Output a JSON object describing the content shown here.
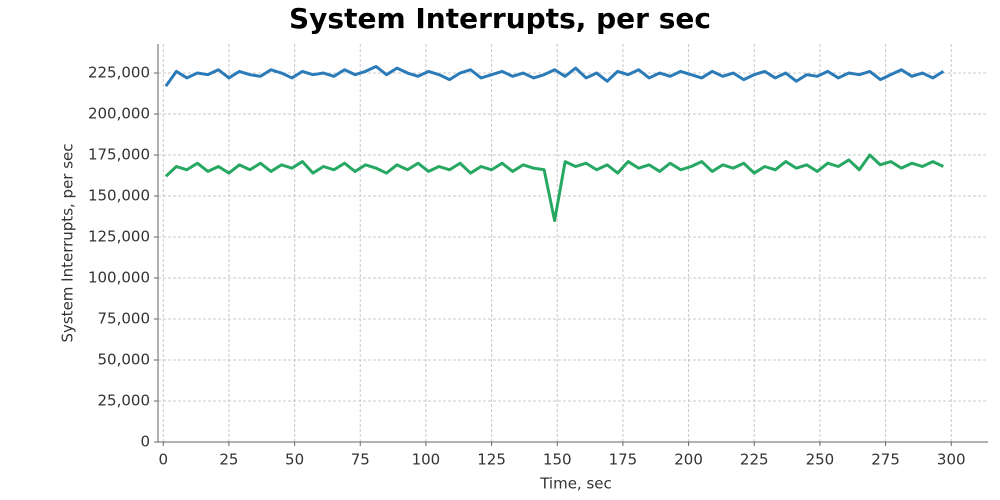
{
  "chart_data": {
    "type": "line",
    "title": "System Interrupts, per sec",
    "x_label": "Time, sec",
    "y_label": "System Interrupts, per sec",
    "xlim": [
      -2,
      314
    ],
    "ylim": [
      0,
      242700
    ],
    "xticks": [
      0,
      25,
      50,
      75,
      100,
      125,
      150,
      175,
      200,
      225,
      250,
      275,
      300
    ],
    "yticks": [
      0,
      {
        "value": 25000,
        "label": "25,000"
      },
      {
        "value": 50000,
        "label": "50,000"
      },
      {
        "value": 75000,
        "label": "75,000"
      },
      {
        "value": 100000,
        "label": "100,000"
      },
      {
        "value": 125000,
        "label": "125,000"
      },
      {
        "value": 150000,
        "label": "150,000"
      },
      {
        "value": 175000,
        "label": "175,000"
      },
      {
        "value": 200000,
        "label": "200,000"
      },
      {
        "value": 225000,
        "label": "225,000"
      }
    ],
    "grid": true,
    "x": [
      1,
      5,
      9,
      13,
      17,
      21,
      25,
      29,
      33,
      37,
      41,
      45,
      49,
      53,
      57,
      61,
      65,
      69,
      73,
      77,
      81,
      85,
      89,
      93,
      97,
      101,
      105,
      109,
      113,
      117,
      121,
      125,
      129,
      133,
      137,
      141,
      145,
      149,
      153,
      157,
      161,
      165,
      169,
      173,
      177,
      181,
      185,
      189,
      193,
      197,
      201,
      205,
      209,
      213,
      217,
      221,
      225,
      229,
      233,
      237,
      241,
      245,
      249,
      253,
      257,
      261,
      265,
      269,
      273,
      277,
      281,
      285,
      289,
      293,
      297
    ],
    "series": [
      {
        "color": "#2b7bb9",
        "values": [
          217000,
          226000,
          222000,
          225000,
          224000,
          227000,
          222000,
          226000,
          224000,
          223000,
          227000,
          225000,
          222000,
          226000,
          224000,
          225000,
          223000,
          227000,
          224000,
          226000,
          229000,
          224000,
          228000,
          225000,
          223000,
          226000,
          224000,
          221000,
          225000,
          227000,
          222000,
          224000,
          226000,
          223000,
          225000,
          222000,
          224000,
          227000,
          223000,
          228000,
          222000,
          225000,
          220000,
          226000,
          224000,
          227000,
          222000,
          225000,
          223000,
          226000,
          224000,
          222000,
          226000,
          223000,
          225000,
          221000,
          224000,
          226000,
          222000,
          225000,
          220000,
          224000,
          223000,
          226000,
          222000,
          225000,
          224000,
          226000,
          221000,
          224000,
          227000,
          223000,
          225000,
          222000,
          226000
        ]
      },
      {
        "color": "#27a862",
        "values": [
          162000,
          168000,
          166000,
          170000,
          165000,
          168000,
          164000,
          169000,
          166000,
          170000,
          165000,
          169000,
          167000,
          171000,
          164000,
          168000,
          166000,
          170000,
          165000,
          169000,
          167000,
          164000,
          169000,
          166000,
          170000,
          165000,
          168000,
          166000,
          170000,
          164000,
          168000,
          166000,
          170000,
          165000,
          169000,
          167000,
          166000,
          135000,
          171000,
          168000,
          170000,
          166000,
          169000,
          164000,
          171000,
          167000,
          169000,
          165000,
          170000,
          166000,
          168000,
          171000,
          165000,
          169000,
          167000,
          170000,
          164000,
          168000,
          166000,
          171000,
          167000,
          169000,
          165000,
          170000,
          168000,
          172000,
          166000,
          175000,
          169000,
          171000,
          167000,
          170000,
          168000,
          171000,
          168000
        ]
      }
    ]
  }
}
